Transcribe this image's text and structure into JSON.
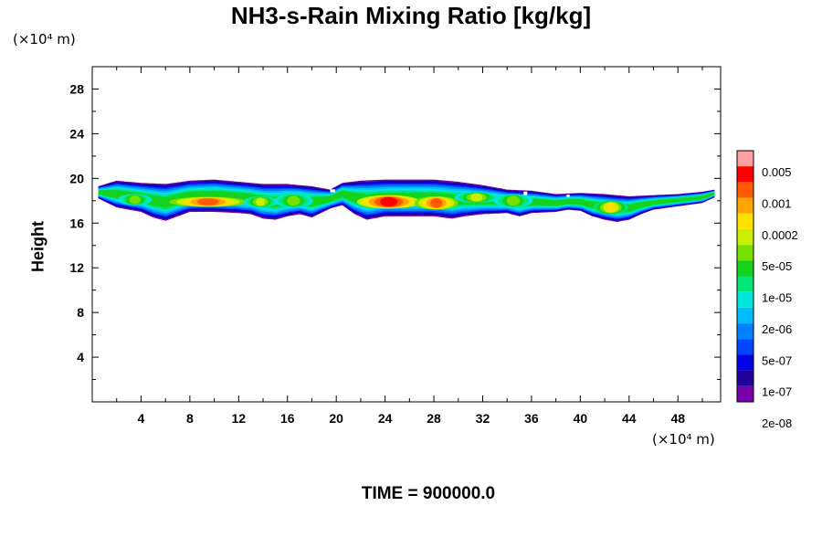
{
  "chart_data": {
    "type": "heatmap",
    "title": "NH3-s-Rain Mixing Ratio [kg/kg]",
    "xlabel": "",
    "ylabel": "Height",
    "x_unit": "(×10⁴ m)",
    "y_unit": "(×10⁴ m)",
    "xlim": [
      0,
      51.5
    ],
    "ylim": [
      0,
      30
    ],
    "x_ticks": [
      4,
      8,
      12,
      16,
      20,
      24,
      28,
      32,
      36,
      40,
      44,
      48
    ],
    "y_ticks": [
      4,
      8,
      12,
      16,
      20,
      24,
      28
    ],
    "colorbar": {
      "labels": [
        "0.005",
        "0.001",
        "0.0002",
        "5e-05",
        "1e-05",
        "2e-06",
        "5e-07",
        "1e-07",
        "2e-08"
      ],
      "colors": [
        "#ff9e9e",
        "#ff0000",
        "#ff5a00",
        "#ffa500",
        "#ffe000",
        "#c8f000",
        "#78e000",
        "#14d21e",
        "#00e678",
        "#00e6dc",
        "#00beff",
        "#0082ff",
        "#0046ff",
        "#0000e6",
        "#1e009a",
        "#7800aa"
      ]
    },
    "cloud": {
      "top_profile": [
        [
          0.5,
          19.3
        ],
        [
          2,
          19.8
        ],
        [
          4,
          19.6
        ],
        [
          6,
          19.5
        ],
        [
          8,
          19.8
        ],
        [
          10,
          19.9
        ],
        [
          12,
          19.7
        ],
        [
          14,
          19.5
        ],
        [
          16,
          19.5
        ],
        [
          18,
          19.3
        ],
        [
          19.5,
          19.0
        ],
        [
          20.5,
          19.6
        ],
        [
          22,
          19.8
        ],
        [
          24,
          19.9
        ],
        [
          26,
          19.9
        ],
        [
          28,
          19.9
        ],
        [
          30,
          19.7
        ],
        [
          32,
          19.4
        ],
        [
          34,
          19.0
        ],
        [
          36,
          18.9
        ],
        [
          38,
          18.6
        ],
        [
          40,
          18.7
        ],
        [
          42,
          18.6
        ],
        [
          44,
          18.4
        ],
        [
          46,
          18.5
        ],
        [
          48,
          18.6
        ],
        [
          50,
          18.8
        ],
        [
          51,
          19.0
        ]
      ],
      "base_profile": [
        [
          0.5,
          18.2
        ],
        [
          2,
          17.4
        ],
        [
          4,
          17.0
        ],
        [
          5,
          16.5
        ],
        [
          6,
          16.2
        ],
        [
          7,
          16.6
        ],
        [
          8,
          17.0
        ],
        [
          10,
          17.0
        ],
        [
          12,
          16.9
        ],
        [
          13,
          16.8
        ],
        [
          14,
          16.4
        ],
        [
          15,
          16.3
        ],
        [
          16,
          16.6
        ],
        [
          17,
          16.8
        ],
        [
          18,
          16.5
        ],
        [
          19.5,
          17.3
        ],
        [
          20.5,
          17.6
        ],
        [
          21.5,
          16.8
        ],
        [
          22.5,
          16.3
        ],
        [
          24,
          16.6
        ],
        [
          26,
          16.6
        ],
        [
          28,
          16.6
        ],
        [
          29.5,
          16.4
        ],
        [
          30.5,
          16.6
        ],
        [
          32,
          16.8
        ],
        [
          34,
          16.9
        ],
        [
          35,
          16.6
        ],
        [
          36,
          16.9
        ],
        [
          38,
          17.0
        ],
        [
          39,
          17.2
        ],
        [
          40,
          17.1
        ],
        [
          41,
          16.6
        ],
        [
          42,
          16.3
        ],
        [
          43,
          16.1
        ],
        [
          44,
          16.3
        ],
        [
          45,
          16.8
        ],
        [
          46,
          17.2
        ],
        [
          48,
          17.5
        ],
        [
          50,
          17.8
        ],
        [
          51,
          18.3
        ]
      ],
      "hotspots": [
        {
          "x": 3.5,
          "y": 18.1,
          "level": 6,
          "rx": 1.4,
          "ry": 0.5
        },
        {
          "x": 9.5,
          "y": 17.9,
          "level": 2,
          "rx": 3.2,
          "ry": 0.45
        },
        {
          "x": 13.8,
          "y": 17.9,
          "level": 5,
          "rx": 1.4,
          "ry": 0.5
        },
        {
          "x": 16.5,
          "y": 18.0,
          "level": 6,
          "rx": 1.6,
          "ry": 0.6
        },
        {
          "x": 24.3,
          "y": 17.9,
          "level": 1,
          "rx": 2.6,
          "ry": 0.6
        },
        {
          "x": 28.2,
          "y": 17.8,
          "level": 2,
          "rx": 1.8,
          "ry": 0.6
        },
        {
          "x": 31.5,
          "y": 18.3,
          "level": 5,
          "rx": 1.8,
          "ry": 0.5
        },
        {
          "x": 34.5,
          "y": 18.0,
          "level": 6,
          "rx": 1.6,
          "ry": 0.6
        },
        {
          "x": 42.5,
          "y": 17.4,
          "level": 4,
          "rx": 1.4,
          "ry": 0.6
        },
        {
          "x": 48.5,
          "y": 18.0,
          "level": 10,
          "rx": 1.8,
          "ry": 0.5
        }
      ]
    }
  },
  "time_label": "TIME = 900000.0"
}
